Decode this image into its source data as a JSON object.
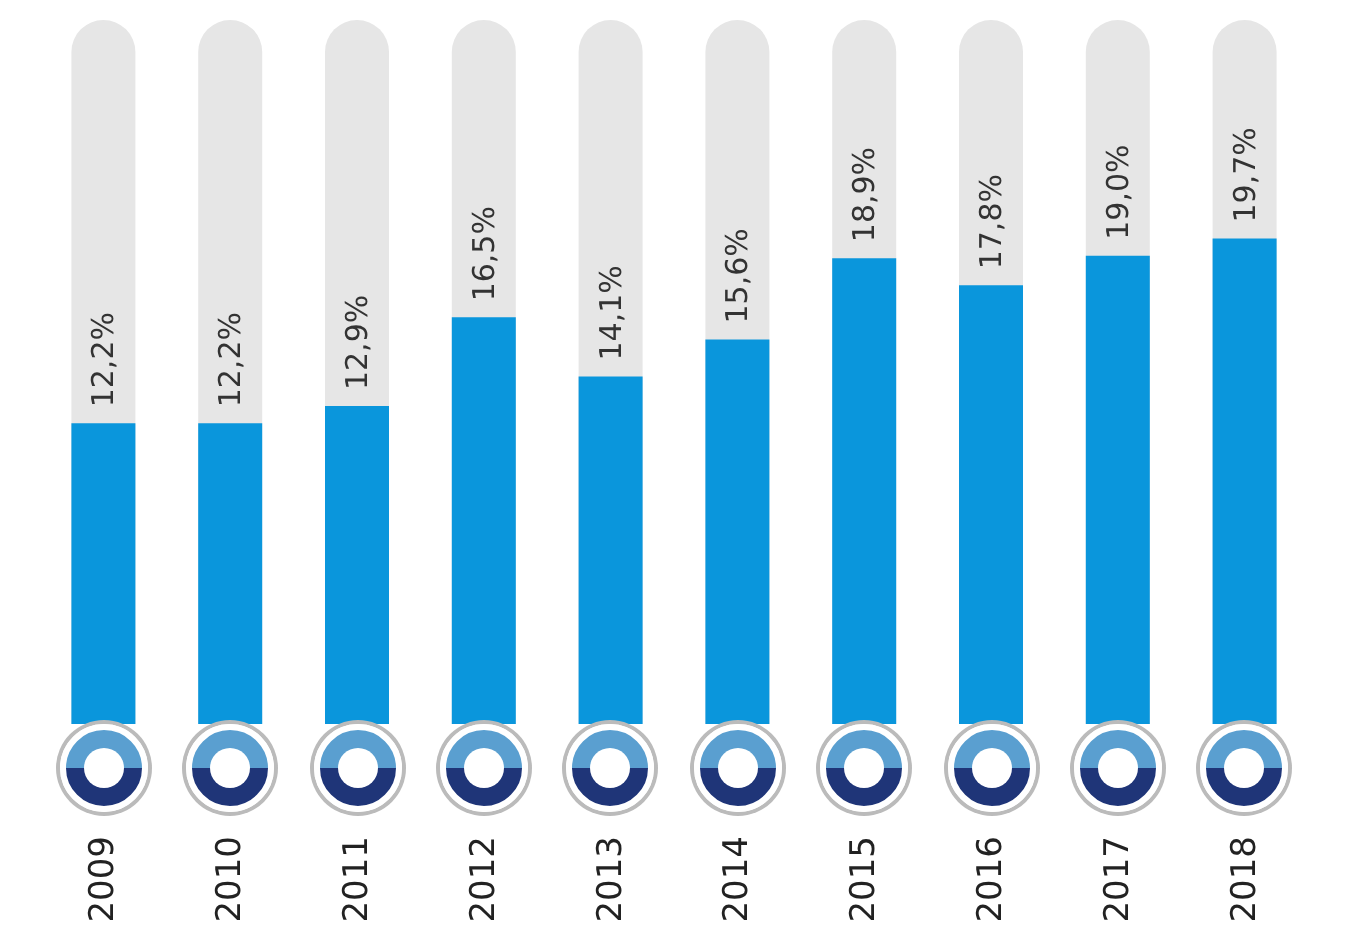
{
  "chart_data": {
    "type": "bar",
    "categories": [
      "2009",
      "2010",
      "2011",
      "2012",
      "2013",
      "2014",
      "2015",
      "2016",
      "2017",
      "2018"
    ],
    "values": [
      12.2,
      12.2,
      12.9,
      16.5,
      14.1,
      15.6,
      18.9,
      17.8,
      19.0,
      19.7
    ],
    "value_labels": [
      "12,2%",
      "12,2%",
      "12,9%",
      "16,5%",
      "14,1%",
      "15,6%",
      "18,9%",
      "17,8%",
      "19,0%",
      "19,7%"
    ],
    "color": "#0a96dc"
  }
}
